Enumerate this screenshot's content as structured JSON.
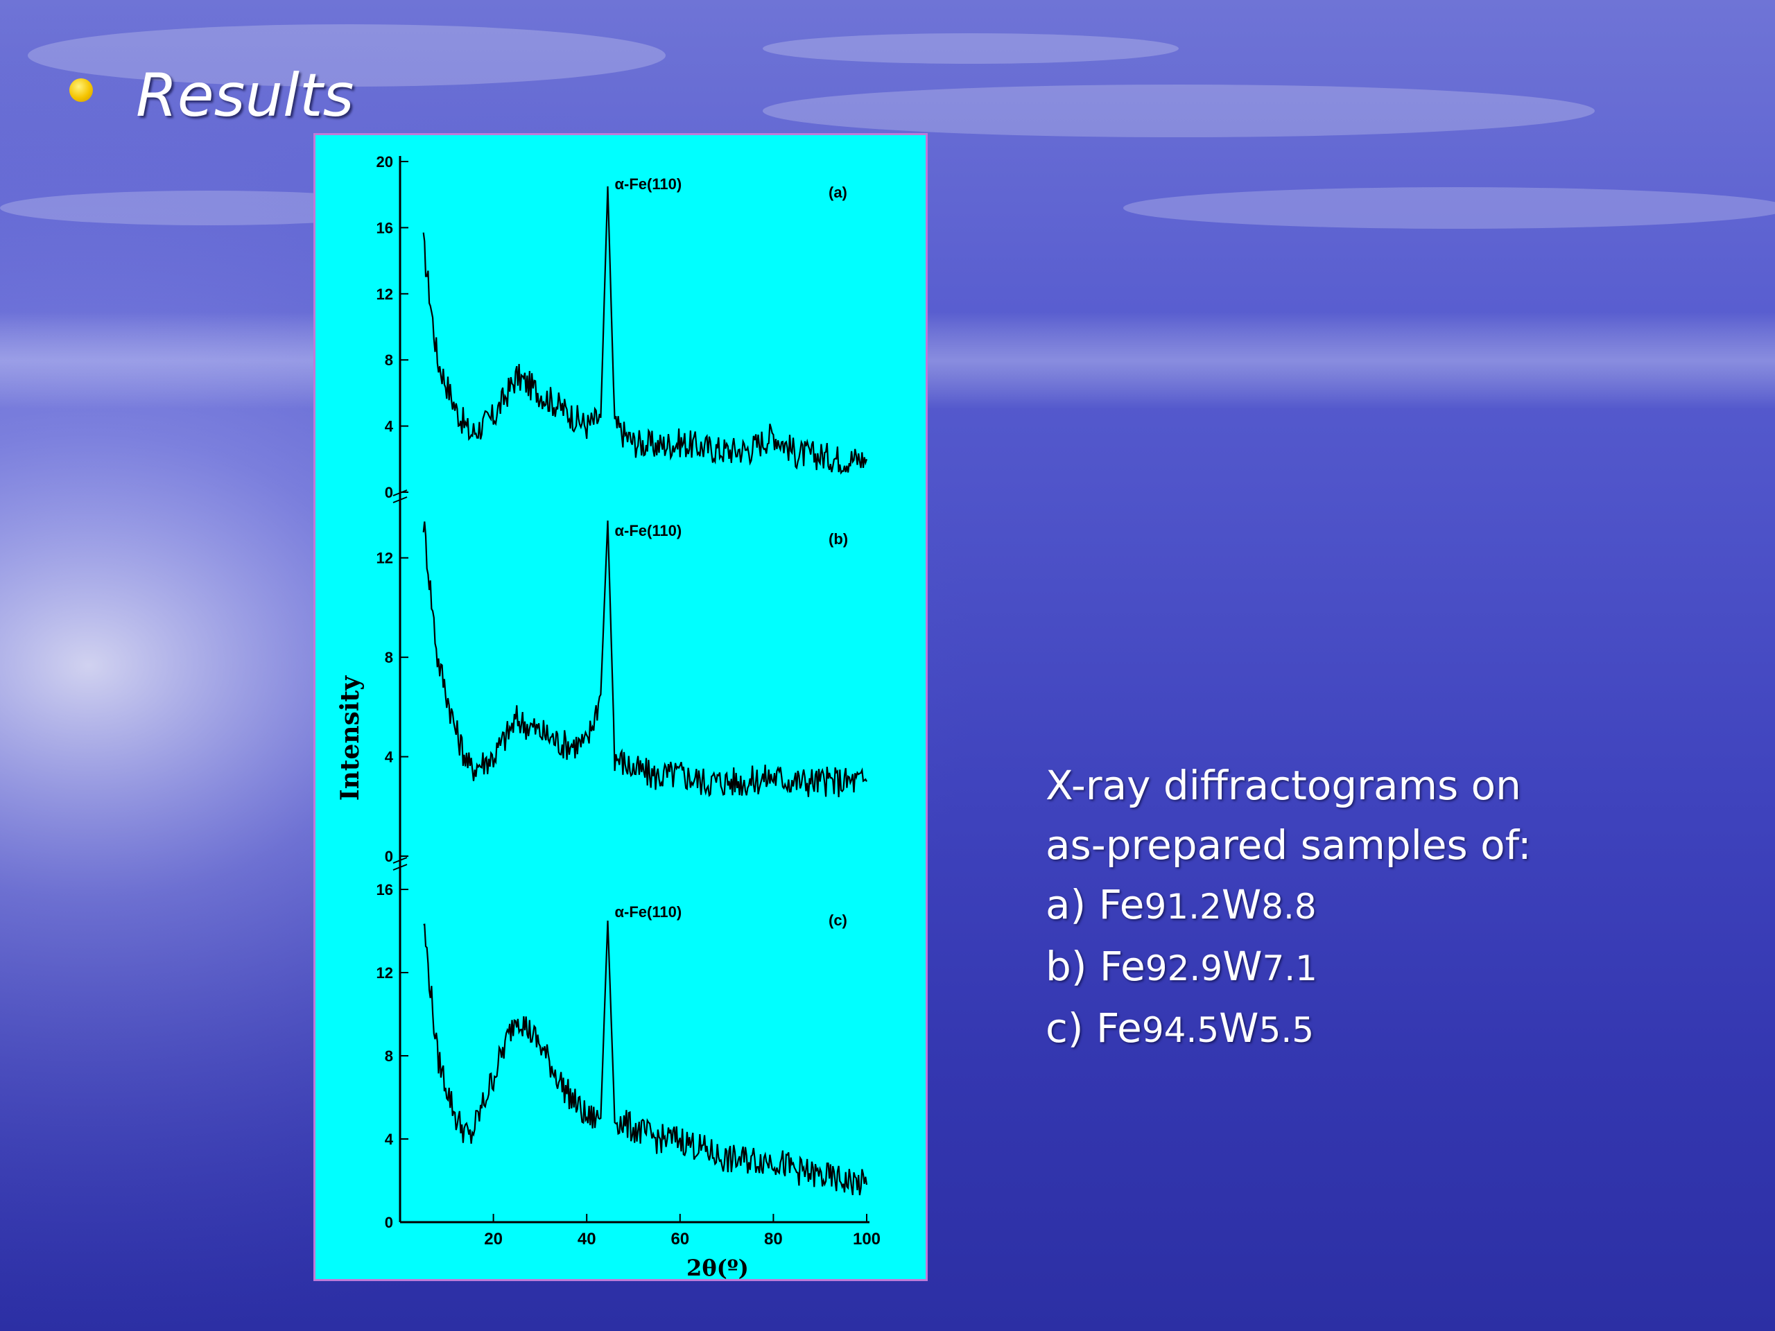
{
  "slide": {
    "title": "Results",
    "caption_lines": [
      "X-ray diffractograms on",
      "as-prepared samples of:"
    ],
    "samples": [
      {
        "label": "a)",
        "el1": "Fe",
        "sub1": "91.2",
        "el2": "W",
        "sub2": "8.8"
      },
      {
        "label": "b)",
        "el1": "Fe",
        "sub1": "92.9",
        "el2": "W",
        "sub2": "7.1"
      },
      {
        "label": "c)",
        "el1": "Fe",
        "sub1": "94.5",
        "el2": "W",
        "sub2": "5.5"
      }
    ],
    "colors": {
      "chart_bg": "#00ffff",
      "trace": "#000000",
      "bullet": "#f5c400"
    }
  },
  "chart_data": {
    "type": "line",
    "xlabel": "2θ(º)",
    "ylabel": "Intensity",
    "xlim": [
      0,
      100
    ],
    "xticks": [
      "20",
      "40",
      "60",
      "80",
      "100"
    ],
    "panels": [
      {
        "name": "(a)",
        "peak_label": "α-Fe(110)",
        "ylim": [
          0,
          20
        ],
        "yticks": [
          "0",
          "4",
          "8",
          "12",
          "16",
          "20"
        ],
        "x": [
          5,
          8,
          12,
          15,
          20,
          25,
          30,
          35,
          40,
          43,
          44.5,
          46,
          50,
          55,
          60,
          65,
          70,
          75,
          80,
          85,
          90,
          95,
          100
        ],
        "y": [
          15,
          8,
          5,
          3.5,
          4.5,
          7,
          6,
          5,
          4,
          4.5,
          18.5,
          4,
          3,
          2.8,
          3,
          2.7,
          2.5,
          2.6,
          3.5,
          2.3,
          2.2,
          2,
          2
        ]
      },
      {
        "name": "(b)",
        "peak_label": "α-Fe(110)",
        "ylim": [
          0,
          14
        ],
        "yticks": [
          "0",
          "4",
          "8",
          "12"
        ],
        "x": [
          5,
          8,
          12,
          15,
          20,
          25,
          30,
          35,
          40,
          43,
          44.5,
          46,
          50,
          55,
          60,
          65,
          70,
          75,
          80,
          85,
          90,
          95,
          100
        ],
        "y": [
          13.5,
          8,
          5,
          3.5,
          4,
          5.5,
          5,
          4.5,
          4.5,
          6.5,
          13.5,
          4,
          3.5,
          3.2,
          3.3,
          3,
          3,
          3,
          3.2,
          3,
          3,
          3,
          3
        ]
      },
      {
        "name": "(c)",
        "peak_label": "α-Fe(110)",
        "ylim": [
          0,
          16
        ],
        "yticks": [
          "0",
          "4",
          "8",
          "12",
          "16"
        ],
        "x": [
          5,
          8,
          12,
          15,
          20,
          25,
          30,
          35,
          40,
          43,
          44.5,
          46,
          50,
          55,
          60,
          65,
          70,
          75,
          80,
          85,
          90,
          95,
          100
        ],
        "y": [
          14.5,
          8,
          5,
          4,
          7,
          10,
          8.5,
          6.5,
          5,
          5,
          14.5,
          5,
          4.5,
          4,
          4,
          3.5,
          3,
          3,
          3,
          2.5,
          2.2,
          2,
          1.8
        ]
      }
    ]
  }
}
